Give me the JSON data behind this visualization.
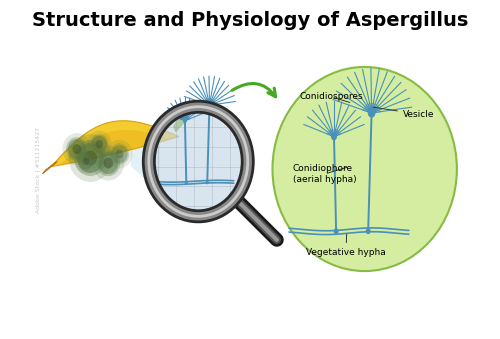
{
  "title": "Structure and Physiology of Aspergillus",
  "title_fontsize": 14,
  "title_fontweight": "bold",
  "bg_color": "#ffffff",
  "labels": {
    "conidiospores": "Conidiospores",
    "vesicle": "Vesicle",
    "conidiophore": "Conidiophore\n(aerial hypha)",
    "vegetative": "Vegetative hypha"
  },
  "label_fontsize": 6.5,
  "aspergillus_color": "#4a90b8",
  "circle_fill": "#d4eda0",
  "circle_edge": "#88bb44",
  "banana_yellow": "#f5cc30",
  "banana_green": "#8ab520",
  "banana_orange": "#e8941a",
  "mold_dark": "#557744",
  "mold_mid": "#88aa66",
  "magnifier_dark": "#444444",
  "magnifier_mid": "#888888",
  "magnifier_light": "#bbbbbb",
  "glass_fill": "#b8ccd8",
  "glass_alpha": 0.55,
  "beam_color": "#add8e6",
  "arrow_color": "#44aa22",
  "watermark": "Adobe Stock | #511215427"
}
